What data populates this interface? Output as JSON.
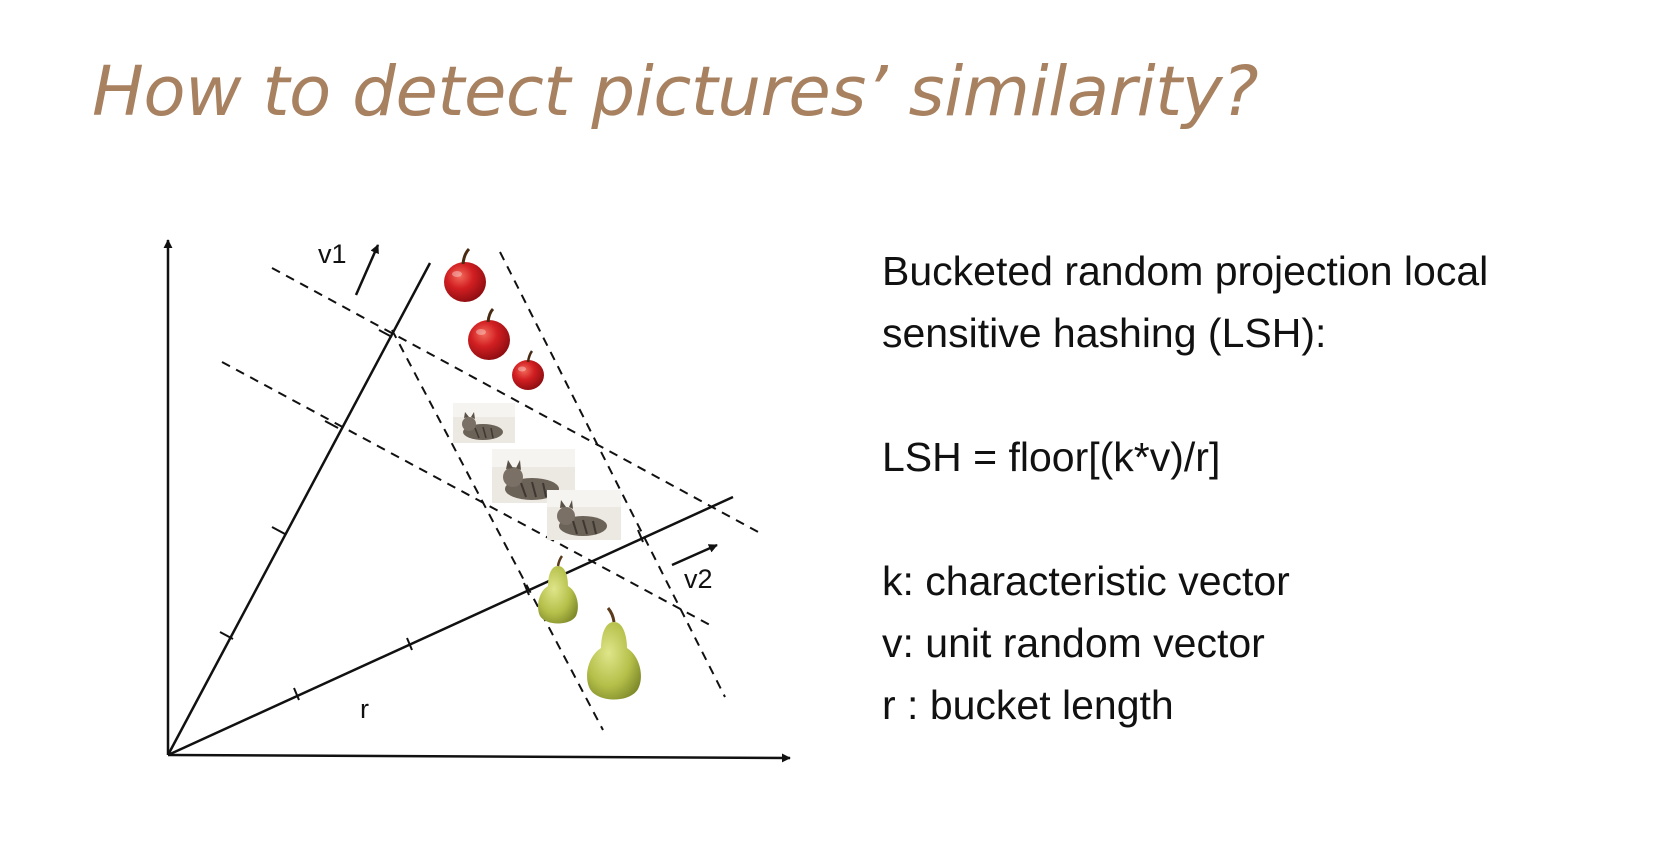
{
  "title": "How to detect pictures’ similarity?",
  "diagram": {
    "label_v1": "v1",
    "label_v2": "v2",
    "label_r": "r",
    "items": [
      {
        "kind": "apple",
        "icon": "apple-icon"
      },
      {
        "kind": "apple",
        "icon": "apple-icon"
      },
      {
        "kind": "apple",
        "icon": "apple-icon"
      },
      {
        "kind": "cat",
        "icon": "cat-photo"
      },
      {
        "kind": "cat",
        "icon": "cat-photo"
      },
      {
        "kind": "cat",
        "icon": "cat-photo"
      },
      {
        "kind": "pear",
        "icon": "pear-icon"
      },
      {
        "kind": "pear",
        "icon": "pear-icon"
      }
    ],
    "colors": {
      "apple": "#c8161d",
      "pear": "#b3bf46",
      "cat_bg": "#ece8e2",
      "line": "#111111"
    }
  },
  "description": {
    "heading_line1": "Bucketed random projection local",
    "heading_line2": "sensitive hashing (LSH):",
    "formula": "LSH = floor[(k*v)/r]",
    "defs": [
      "k: characteristic vector",
      "v: unit random vector",
      "r : bucket length"
    ]
  }
}
